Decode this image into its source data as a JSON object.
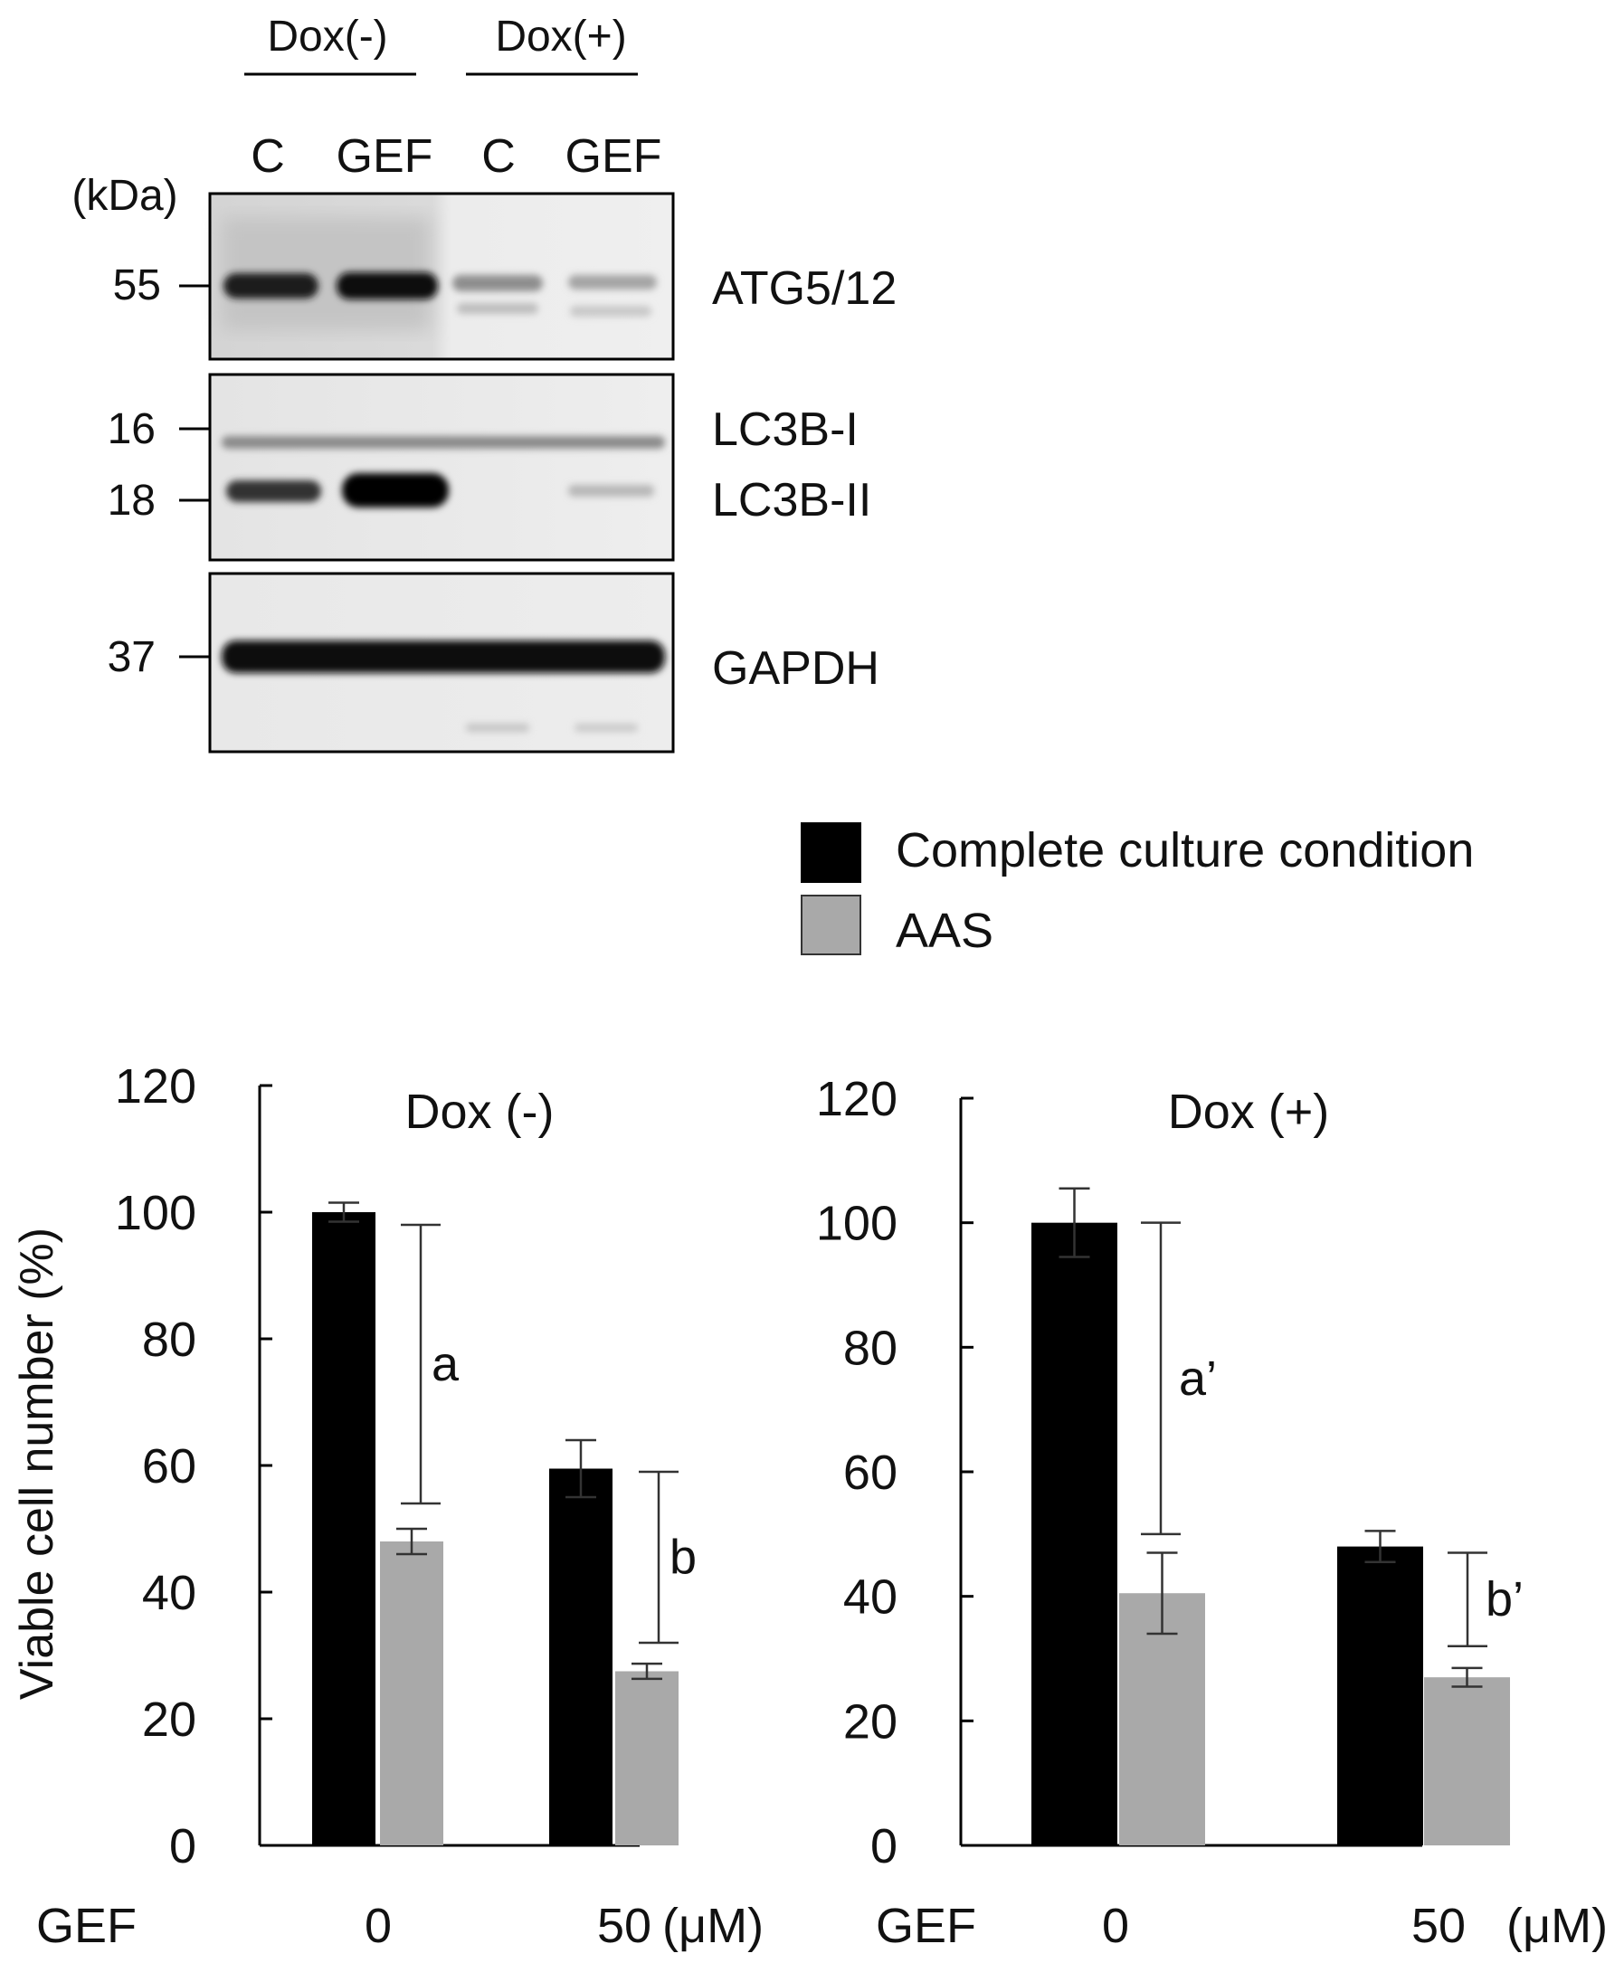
{
  "colors": {
    "series_complete": "#000000",
    "series_aas": "#a9a9a9",
    "axis": "#000000",
    "errorbar": "#333333"
  },
  "western_blot": {
    "groups": [
      "Dox(-)",
      "Dox(+)"
    ],
    "lanes": [
      "C",
      "GEF",
      "C",
      "GEF"
    ],
    "unit_label": "(kDa)",
    "panels": [
      {
        "markers": [
          "55"
        ],
        "bands": [
          "ATG5/12"
        ]
      },
      {
        "markers": [
          "16",
          "18"
        ],
        "bands": [
          "LC3B-I",
          "LC3B-II"
        ]
      },
      {
        "markers": [
          "37"
        ],
        "bands": [
          "GAPDH"
        ]
      }
    ]
  },
  "chart_data": [
    {
      "type": "bar",
      "title": "Dox (-)",
      "ylabel": "Viable cell number (%)",
      "xlabel": "GEF",
      "categories": [
        "0",
        "50"
      ],
      "unit": "(μM)",
      "ylim": [
        0,
        120
      ],
      "yticks": [
        0,
        20,
        40,
        60,
        80,
        100,
        120
      ],
      "legend": "top-right",
      "series": [
        {
          "name": "Complete culture condition",
          "values": [
            100,
            59.5
          ],
          "errors": [
            1.5,
            4.5
          ]
        },
        {
          "name": "AAS",
          "values": [
            48,
            27.5
          ],
          "errors": [
            2,
            1.2
          ]
        }
      ],
      "annotations": [
        {
          "label": "a",
          "category": "0",
          "from": 54,
          "to": 98
        },
        {
          "label": "b",
          "category": "50",
          "from": 32,
          "to": 59
        }
      ]
    },
    {
      "type": "bar",
      "title": "Dox (+)",
      "ylabel": "",
      "xlabel": "GEF",
      "categories": [
        "0",
        "50"
      ],
      "unit": "(μM)",
      "ylim": [
        0,
        120
      ],
      "yticks": [
        0,
        20,
        40,
        60,
        80,
        100,
        120
      ],
      "series": [
        {
          "name": "Complete culture condition",
          "values": [
            100,
            48
          ],
          "errors": [
            5.5,
            2.5
          ]
        },
        {
          "name": "AAS",
          "values": [
            40.5,
            27
          ],
          "errors": [
            6.5,
            1.5
          ]
        }
      ],
      "annotations": [
        {
          "label": "a’",
          "category": "0",
          "from": 50,
          "to": 100
        },
        {
          "label": "b’",
          "category": "50",
          "from": 32,
          "to": 47
        }
      ]
    }
  ]
}
